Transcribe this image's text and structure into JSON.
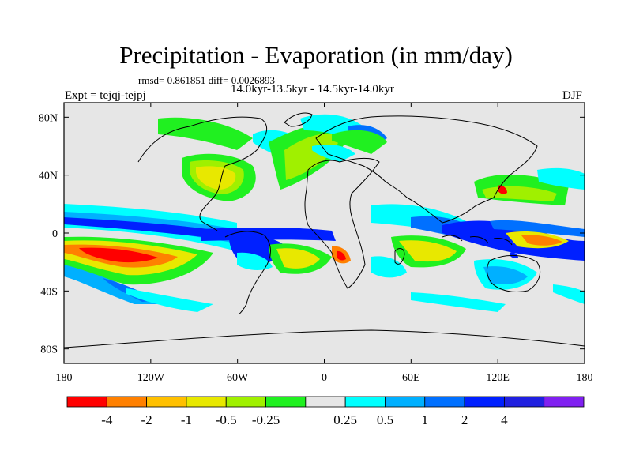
{
  "title": "Precipitation - Evaporation (in mm/day)",
  "stats": "rmsd= 0.861851 diff= 0.0026893",
  "subtitle": "14.0kyr-13.5kyr - 14.5kyr-14.0kyr",
  "left_label": "Expt = tejqj-tejpj",
  "right_label": "DJF",
  "map": {
    "projection": "cylindrical-equidistant",
    "lon_range": [
      -180,
      180
    ],
    "lat_range": [
      -90,
      90
    ],
    "background_color": "#e6e6e6",
    "lat_ticks": [
      {
        "value": 80,
        "label": "80N"
      },
      {
        "value": 40,
        "label": "40N"
      },
      {
        "value": 0,
        "label": "0"
      },
      {
        "value": -40,
        "label": "40S"
      },
      {
        "value": -80,
        "label": "80S"
      }
    ],
    "lon_ticks": [
      {
        "value": -180,
        "label": "180"
      },
      {
        "value": -120,
        "label": "120W"
      },
      {
        "value": -60,
        "label": "60W"
      },
      {
        "value": 0,
        "label": "0"
      },
      {
        "value": 60,
        "label": "60E"
      },
      {
        "value": 120,
        "label": "120E"
      },
      {
        "value": 180,
        "label": "180"
      }
    ]
  },
  "colorbar": {
    "colors": [
      "#ff0000",
      "#ff8000",
      "#ffc000",
      "#e8e800",
      "#a0f000",
      "#20f020",
      "#e6e6e6",
      "#00ffff",
      "#00b0ff",
      "#0070ff",
      "#0020ff",
      "#2020e0",
      "#8020f0"
    ],
    "labels": [
      "-4",
      "-2",
      "-1",
      "-0.5",
      "-0.25",
      "0.25",
      "0.5",
      "1",
      "2",
      "4"
    ]
  }
}
